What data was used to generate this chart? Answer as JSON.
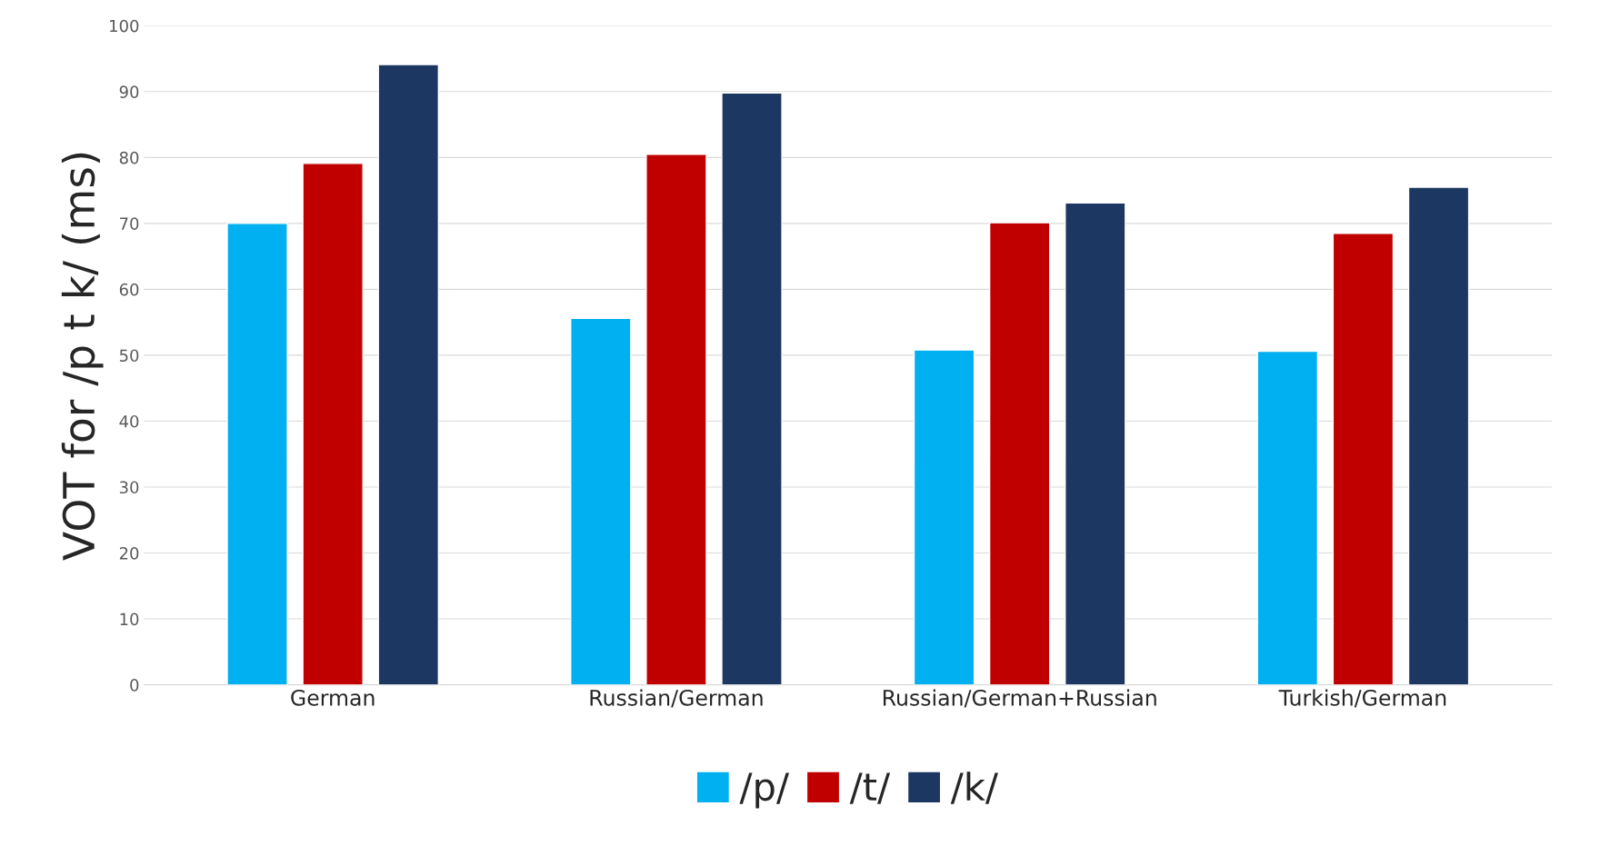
{
  "chart_data": {
    "type": "bar",
    "ylabel": "VOT for /p t k/ (ms)",
    "categories": [
      "German",
      "Russian/German",
      "Russian/German+Russian",
      "Turkish/German"
    ],
    "series": [
      {
        "name": "/p/",
        "color": "#00b0f0",
        "values": [
          70,
          55.6,
          50.8,
          50.6
        ]
      },
      {
        "name": "/t/",
        "color": "#c00000",
        "values": [
          79.1,
          80.5,
          70.1,
          68.5
        ]
      },
      {
        "name": "/k/",
        "color": "#1c3761",
        "values": [
          94.1,
          89.8,
          73.1,
          75.5
        ]
      }
    ],
    "ylim": [
      0,
      100
    ],
    "yticks": [
      0,
      10,
      20,
      30,
      40,
      50,
      60,
      70,
      80,
      90,
      100
    ],
    "grid": "y",
    "legend": "bottom"
  }
}
